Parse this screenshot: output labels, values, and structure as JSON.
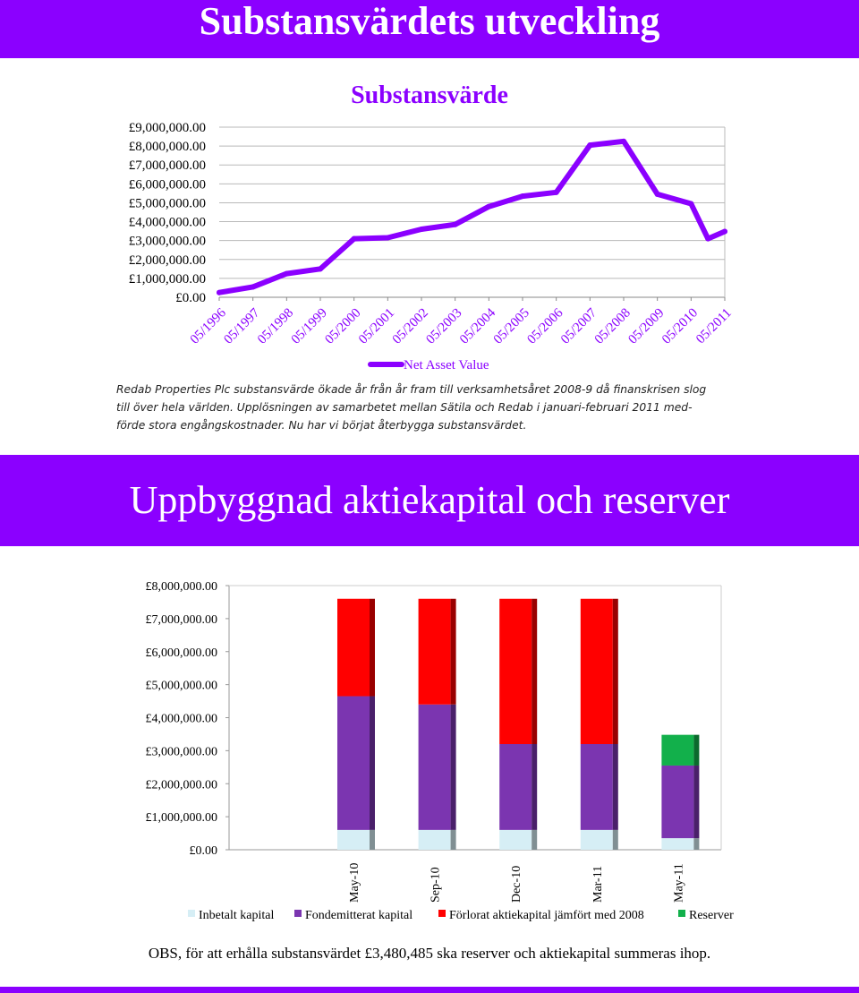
{
  "banner_top": "Substansvärdets utveckling",
  "banner_mid": "Uppbyggnad aktiekapital och reserver",
  "chart1_text": {
    "title": "Substansvärde",
    "legend": "Net Asset Value"
  },
  "paragraph": [
    "Redab Properties Plc substansvärde ökade år från år fram till verksamhetsåret 2008-9 då finanskrisen slog",
    "till över hela världen. Upplösningen av samarbetet mellan Sätila och Redab i januari-februari 2011 med-",
    "förde stora engångskostnader. Nu har vi börjat återbygga substansvärdet."
  ],
  "note": "OBS, för att erhålla substansvärdet £3,480,485 ska reserver och aktiekapital summeras ihop.",
  "chart_data": [
    {
      "type": "line",
      "title": "Substansvärde",
      "xlabel": "",
      "ylabel": "",
      "ylim": [
        0,
        9000000
      ],
      "yticks": [
        "£0.00",
        "£1,000,000.00",
        "£2,000,000.00",
        "£3,000,000.00",
        "£4,000,000.00",
        "£5,000,000.00",
        "£6,000,000.00",
        "£7,000,000.00",
        "£8,000,000.00",
        "£9,000,000.00"
      ],
      "xticks": [
        "05/1996",
        "05/1997",
        "05/1998",
        "05/1999",
        "05/2000",
        "05/2001",
        "05/2002",
        "05/2003",
        "05/2004",
        "05/2005",
        "05/2006",
        "05/2007",
        "05/2008",
        "05/2009",
        "05/2010",
        "05/2011"
      ],
      "x": [
        0,
        1,
        2,
        3,
        4,
        5,
        6,
        7,
        8,
        9,
        10,
        11,
        12,
        13,
        14,
        14.5,
        15
      ],
      "series": [
        {
          "name": "Net Asset Value",
          "color": "#8b00ff",
          "values": [
            250000,
            550000,
            1250000,
            1500000,
            3100000,
            3150000,
            3600000,
            3850000,
            4800000,
            5350000,
            5550000,
            8050000,
            8250000,
            5450000,
            4950000,
            3100000,
            3480485
          ]
        }
      ],
      "grid": true,
      "legend": "bottom"
    },
    {
      "type": "bar",
      "stacked": true,
      "title": "",
      "xlabel": "",
      "ylabel": "",
      "ylim": [
        0,
        8000000
      ],
      "yticks": [
        "£0.00",
        "£1,000,000.00",
        "£2,000,000.00",
        "£3,000,000.00",
        "£4,000,000.00",
        "£5,000,000.00",
        "£6,000,000.00",
        "£7,000,000.00",
        "£8,000,000.00"
      ],
      "categories": [
        "May-10",
        "Sep-10",
        "Dec-10",
        "Mar-11",
        "May-11"
      ],
      "series": [
        {
          "name": "Inbetalt kapital",
          "color": "#d6eef5",
          "values": [
            600000,
            600000,
            600000,
            600000,
            350000
          ]
        },
        {
          "name": "Fondemitterat kapital",
          "color": "#7b35b0",
          "values": [
            4050000,
            3800000,
            2600000,
            2600000,
            2200000
          ]
        },
        {
          "name": "Förlorat aktiekapital jämfört med 2008",
          "color": "#ff0000",
          "values": [
            2950000,
            3200000,
            4400000,
            4400000,
            0
          ]
        },
        {
          "name": "Reserver",
          "color": "#12b04b",
          "values": [
            0,
            0,
            0,
            0,
            930485
          ]
        }
      ],
      "grid": true,
      "legend": "bottom"
    }
  ]
}
